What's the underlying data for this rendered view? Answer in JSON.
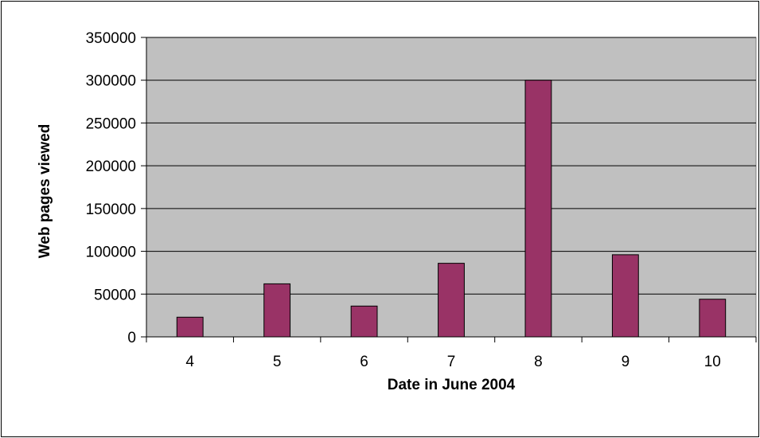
{
  "chart_data": {
    "type": "bar",
    "title": "",
    "xlabel": "Date in June 2004",
    "ylabel": "Web pages viewed",
    "categories": [
      "4",
      "5",
      "6",
      "7",
      "8",
      "9",
      "10"
    ],
    "values": [
      23000,
      62000,
      36000,
      86000,
      300000,
      96000,
      44000
    ],
    "ylim": [
      0,
      350000
    ],
    "yticks": [
      "0",
      "50000",
      "100000",
      "150000",
      "200000",
      "250000",
      "300000",
      "350000"
    ],
    "grid": true,
    "legend": "none",
    "colors": {
      "bar_fill": "#993366",
      "bar_stroke": "#000000",
      "plot_background": "#c0c0c0",
      "gridline": "#000000"
    }
  }
}
